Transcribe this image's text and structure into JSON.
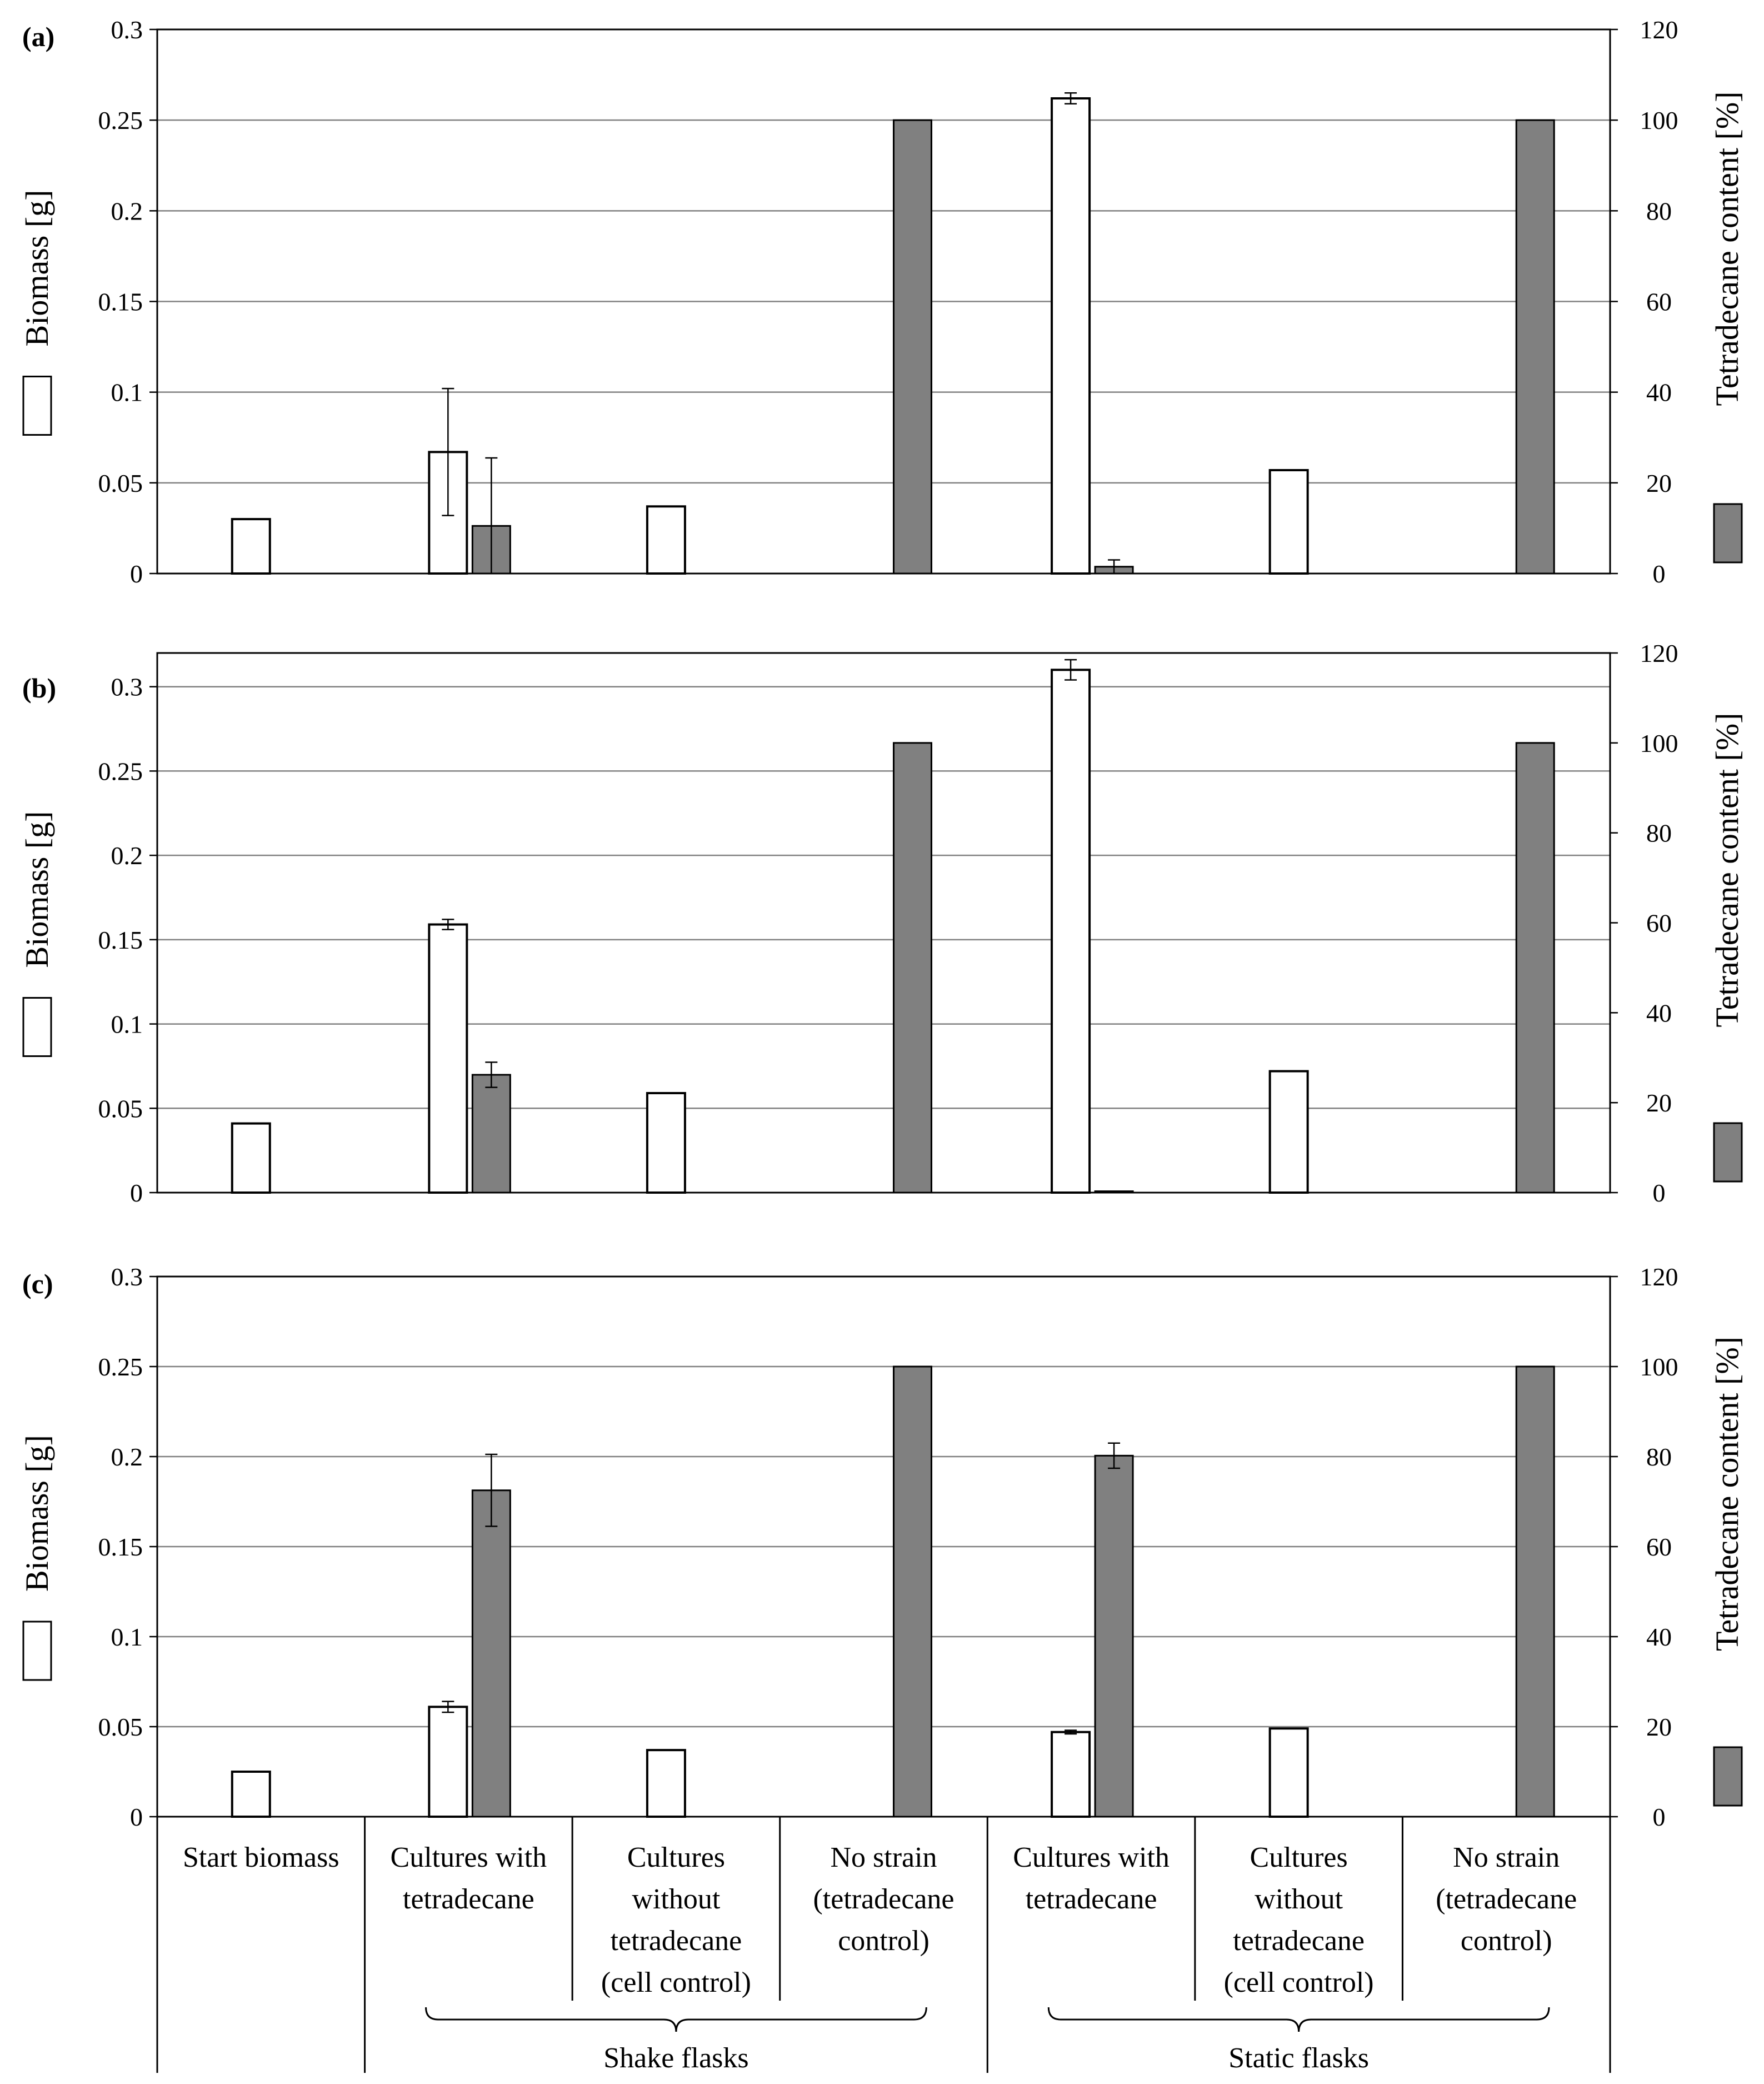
{
  "colors": {
    "biomass_fill": "#ffffff",
    "tetradecane_fill": "#808080",
    "bar_stroke": "#000000",
    "grid": "#808080",
    "axis": "#000000"
  },
  "categories": [
    [
      "Start biomass"
    ],
    [
      "Cultures with",
      "tetradecane"
    ],
    [
      "Cultures",
      "without",
      "tetradecane",
      "(cell control)"
    ],
    [
      "No strain",
      "(tetradecane",
      "control)"
    ],
    [
      "Cultures with",
      "tetradecane"
    ],
    [
      "Cultures",
      "without",
      "tetradecane",
      "(cell control)"
    ],
    [
      "No strain",
      "(tetradecane",
      "control)"
    ]
  ],
  "groups": [
    {
      "label": "Shake flasks",
      "from_category": 1,
      "to_category": 3
    },
    {
      "label": "Static flasks",
      "from_category": 4,
      "to_category": 6
    }
  ],
  "chart_data": [
    {
      "type": "bar",
      "panel_label": "(a)",
      "ylabel": "Biomass [g]",
      "y2label": "Tetradecane content [%]",
      "ylim": [
        0,
        0.3
      ],
      "y2lim": [
        0,
        120
      ],
      "yticks": [
        "0",
        "0.05",
        "0.1",
        "0.15",
        "0.2",
        "0.25",
        "0.3"
      ],
      "y2ticks": [
        "0",
        "20",
        "40",
        "60",
        "80",
        "100",
        "120"
      ],
      "grid": true,
      "series": [
        {
          "name": "Biomass [g]",
          "axis": "left",
          "values": [
            0.03,
            0.067,
            0.037,
            null,
            0.262,
            0.057,
            null
          ],
          "errors": [
            null,
            0.035,
            null,
            null,
            0.003,
            null,
            null
          ]
        },
        {
          "name": "Tetradecane content [%]",
          "axis": "right",
          "values": [
            null,
            10.5,
            null,
            100,
            1.5,
            null,
            100
          ],
          "errors": [
            null,
            15,
            null,
            0,
            1.5,
            null,
            0
          ]
        }
      ]
    },
    {
      "type": "bar",
      "panel_label": "(b)",
      "ylabel": "Biomass [g]",
      "y2label": "Tetradecane content [%]",
      "ylim": [
        0,
        0.32
      ],
      "y2lim": [
        0,
        120
      ],
      "yticks": [
        "0",
        "0.05",
        "0.1",
        "0.15",
        "0.2",
        "0.25",
        "0.3"
      ],
      "y2ticks": [
        "0",
        "20",
        "40",
        "60",
        "80",
        "100",
        "120"
      ],
      "grid": true,
      "series": [
        {
          "name": "Biomass [g]",
          "axis": "left",
          "values": [
            0.041,
            0.159,
            0.059,
            null,
            0.31,
            0.072,
            null
          ],
          "errors": [
            null,
            0.003,
            null,
            null,
            0.006,
            null,
            null
          ]
        },
        {
          "name": "Tetradecane content [%]",
          "axis": "right",
          "values": [
            null,
            26.2,
            null,
            100,
            0.3,
            null,
            100
          ],
          "errors": [
            null,
            2.8,
            null,
            0,
            0,
            null,
            0
          ]
        }
      ]
    },
    {
      "type": "bar",
      "panel_label": "(c)",
      "ylabel": "Biomass [g]",
      "y2label": "Tetradecane content [%]",
      "ylim": [
        0,
        0.3
      ],
      "y2lim": [
        0,
        120
      ],
      "yticks": [
        "0",
        "0.05",
        "0.1",
        "0.15",
        "0.2",
        "0.25",
        "0.3"
      ],
      "y2ticks": [
        "0",
        "20",
        "40",
        "60",
        "80",
        "100",
        "120"
      ],
      "grid": true,
      "series": [
        {
          "name": "Biomass [g]",
          "axis": "left",
          "values": [
            0.025,
            0.061,
            0.037,
            null,
            0.047,
            0.049,
            null
          ],
          "errors": [
            null,
            0.003,
            null,
            null,
            0.001,
            null,
            null
          ]
        },
        {
          "name": "Tetradecane content [%]",
          "axis": "right",
          "values": [
            null,
            72.5,
            null,
            100,
            80.2,
            null,
            100
          ],
          "errors": [
            null,
            8,
            null,
            0,
            2.8,
            null,
            0
          ]
        }
      ]
    }
  ]
}
